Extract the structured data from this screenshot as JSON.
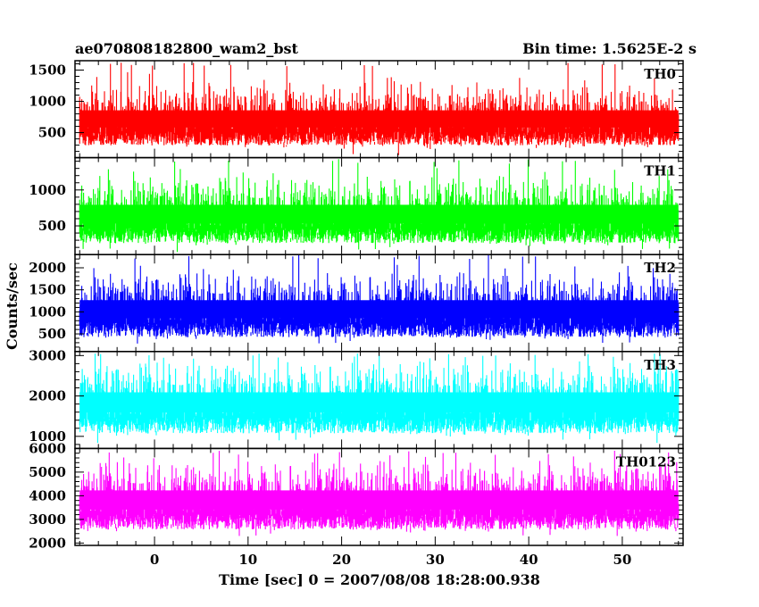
{
  "header": {
    "title": "ae070808182800_wam2_bst",
    "bin_time": "Bin time: 1.5625E-2 s"
  },
  "chart_data": {
    "type": "line",
    "xlabel": "Time [sec] 0 = 2007/08/08 18:28:00.938",
    "ylabel": "Counts/sec",
    "xlim": [
      -8.5,
      56.5
    ],
    "data_x_range": [
      -8,
      56
    ],
    "x_ticks": [
      0,
      10,
      20,
      30,
      40,
      50
    ],
    "x_tick_labels": [
      "0",
      "10",
      "20",
      "30",
      "40",
      "50"
    ],
    "grid": false,
    "panels": [
      {
        "name": "TH0",
        "color": "#ff0000",
        "ylim": [
          100,
          1650
        ],
        "y_ticks": [
          500,
          1000,
          1500
        ],
        "y_tick_labels": [
          "500",
          "1000",
          "1500"
        ],
        "baseline": 100,
        "mean": 780,
        "spread": 220,
        "peak": 1620
      },
      {
        "name": "TH1",
        "color": "#00ff00",
        "ylim": [
          100,
          1450
        ],
        "y_ticks": [
          500,
          1000
        ],
        "y_tick_labels": [
          "500",
          "1000"
        ],
        "baseline": 100,
        "mean": 720,
        "spread": 210,
        "peak": 1430
      },
      {
        "name": "TH2",
        "color": "#0000ff",
        "ylim": [
          100,
          2300
        ],
        "y_ticks": [
          500,
          1000,
          1500,
          2000
        ],
        "y_tick_labels": [
          "500",
          "1000",
          "1500",
          "2000"
        ],
        "baseline": 280,
        "mean": 1150,
        "spread": 330,
        "peak": 2300
      },
      {
        "name": "TH3",
        "color": "#00ffff",
        "ylim": [
          700,
          3100
        ],
        "y_ticks": [
          1000,
          2000,
          3000
        ],
        "y_tick_labels": [
          "1000",
          "2000",
          "3000"
        ],
        "baseline": 800,
        "mean": 1950,
        "spread": 400,
        "peak": 3050
      },
      {
        "name": "TH0123",
        "color": "#ff00ff",
        "ylim": [
          1900,
          6000
        ],
        "y_ticks": [
          2000,
          3000,
          4000,
          5000,
          6000
        ],
        "y_tick_labels": [
          "2000",
          "3000",
          "4000",
          "5000",
          "6000"
        ],
        "baseline": 2300,
        "mean": 4000,
        "spread": 650,
        "peak": 5900
      }
    ]
  }
}
